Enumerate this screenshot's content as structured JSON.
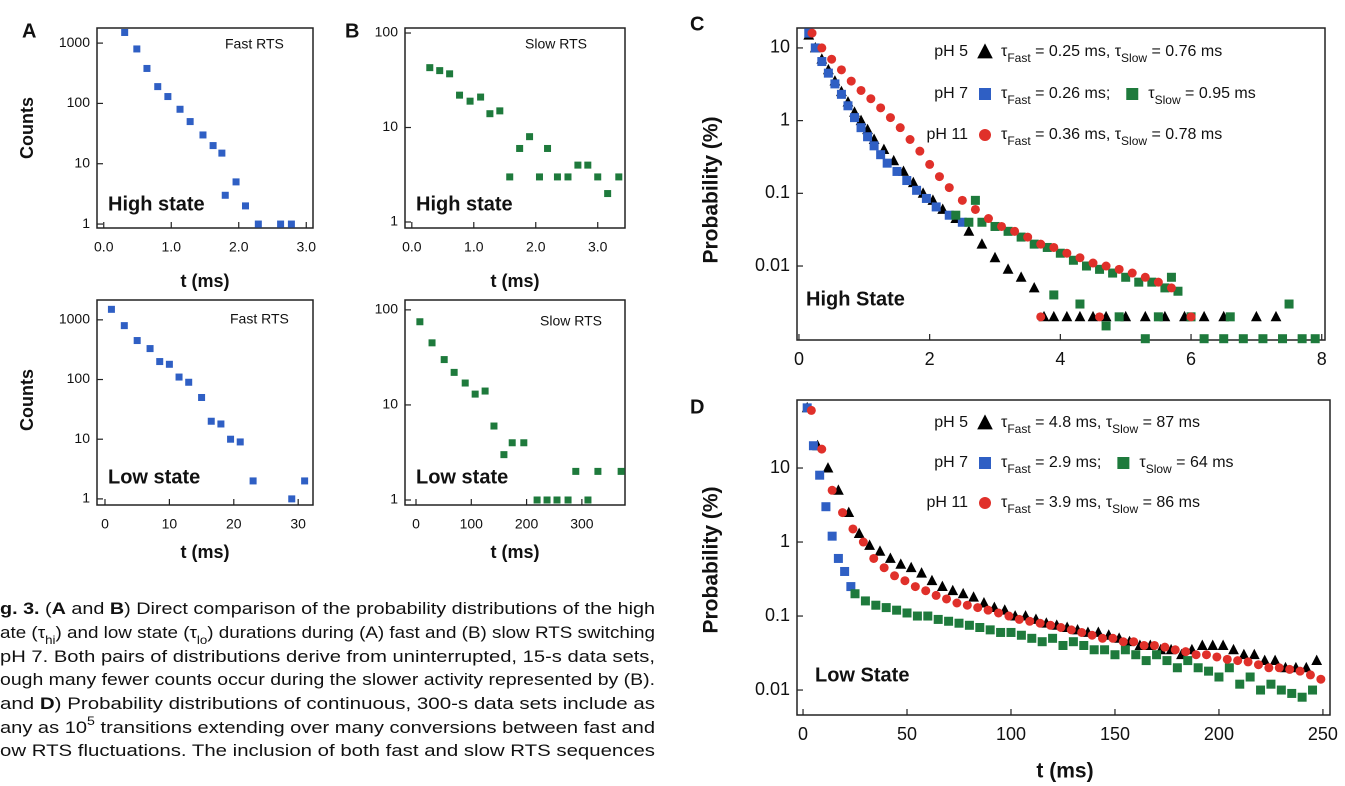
{
  "chart_data": [
    {
      "type": "scatter",
      "panel": "A",
      "ylabel": "Counts",
      "xlabel": "t (ms)",
      "annotations": [
        "Fast RTS",
        "High state"
      ],
      "marker": "square",
      "color": "#2f5fc4",
      "log_y": true,
      "xlim": [
        -0.1,
        3.1
      ],
      "ylim": [
        0.86,
        1780
      ],
      "xticks": [
        {
          "value": 0,
          "label": "0.0"
        },
        {
          "value": 1,
          "label": "1.0"
        },
        {
          "value": 2,
          "label": "2.0"
        },
        {
          "value": 3,
          "label": "3.0"
        }
      ],
      "yticks": [
        1,
        10,
        100,
        1000
      ],
      "x": [
        0.31,
        0.49,
        0.64,
        0.8,
        0.95,
        1.13,
        1.28,
        1.47,
        1.62,
        1.75,
        1.8,
        1.96,
        2.1,
        2.29,
        2.62,
        2.78
      ],
      "values": [
        1500,
        800,
        380,
        190,
        130,
        80,
        50,
        30,
        20,
        15,
        3,
        5,
        2,
        1,
        1,
        1
      ]
    },
    {
      "type": "scatter",
      "ylabel": "Counts",
      "xlabel": "t (ms)",
      "annotations": [
        "Fast RTS",
        "Low state"
      ],
      "marker": "square",
      "color": "#2f5fc4",
      "log_y": true,
      "xlim": [
        -1.24,
        32.3
      ],
      "ylim": [
        0.79,
        2150
      ],
      "xticks": [
        0,
        10,
        20,
        30
      ],
      "yticks": [
        1,
        10,
        100,
        1000
      ],
      "x": [
        1,
        3,
        5,
        7,
        8.5,
        10,
        11.5,
        13,
        15,
        16.5,
        18,
        19.5,
        21,
        23,
        29,
        31
      ],
      "values": [
        1500,
        800,
        450,
        330,
        200,
        180,
        110,
        90,
        50,
        20,
        18,
        10,
        9,
        2,
        1,
        2
      ]
    },
    {
      "type": "scatter",
      "panel": "B",
      "xlabel": "t (ms)",
      "annotations": [
        "Slow RTS",
        "High state"
      ],
      "marker": "square",
      "color": "#1e7a3c",
      "log_y": true,
      "xlim": [
        -0.11,
        3.44
      ],
      "ylim": [
        0.864,
        113
      ],
      "xticks": [
        {
          "value": 0,
          "label": "0.0"
        },
        {
          "value": 1,
          "label": "1.0"
        },
        {
          "value": 2,
          "label": "2.0"
        },
        {
          "value": 3,
          "label": "3.0"
        }
      ],
      "yticks": [
        1,
        10,
        100
      ],
      "x": [
        0.29,
        0.45,
        0.61,
        0.77,
        0.94,
        1.11,
        1.26,
        1.42,
        1.58,
        1.74,
        1.9,
        2.06,
        2.19,
        2.35,
        2.52,
        2.68,
        2.84,
        3.0,
        3.16,
        3.34
      ],
      "values": [
        43,
        40,
        37,
        22,
        19,
        21,
        14,
        15,
        3,
        6,
        8,
        3,
        6,
        3,
        3,
        4,
        4,
        3,
        2,
        3
      ]
    },
    {
      "type": "scatter",
      "xlabel": "t (ms)",
      "annotations": [
        "Slow RTS",
        "Low state"
      ],
      "marker": "square",
      "color": "#1e7a3c",
      "log_y": true,
      "xlim": [
        -19.9,
        378
      ],
      "ylim": [
        0.886,
        127
      ],
      "xticks": [
        0,
        100,
        200,
        300
      ],
      "yticks": [
        1,
        10,
        100
      ],
      "x": [
        7,
        29,
        51,
        69,
        89,
        107,
        125,
        141,
        159,
        174,
        195,
        219,
        237,
        255,
        275,
        289,
        311,
        329,
        371
      ],
      "values": [
        75,
        45,
        30,
        22,
        17,
        13,
        14,
        6,
        3,
        4,
        4,
        1,
        1,
        1,
        1,
        2,
        1,
        2,
        2
      ]
    },
    {
      "type": "scatter",
      "panel": "C",
      "ylabel": "Probability (%)",
      "annotations": [
        "High State"
      ],
      "log_y": true,
      "xlim": [
        -0.03,
        8.05
      ],
      "ylim": [
        0.00096,
        18.8
      ],
      "xticks": [
        0,
        2,
        4,
        6,
        8
      ],
      "yticks": [
        0.01,
        0.1,
        1,
        10
      ],
      "series": [
        {
          "name": "pH 5",
          "label": [
            "τ",
            "Fast",
            " = 0.25 ms, τ",
            "Slow",
            " = 0.76 ms"
          ],
          "marker": "triangle",
          "color": "#000000",
          "x": [
            0.15,
            0.25,
            0.35,
            0.45,
            0.55,
            0.65,
            0.75,
            0.85,
            0.95,
            1.05,
            1.15,
            1.3,
            1.45,
            1.6,
            1.75,
            1.9,
            2.05,
            2.2,
            2.4,
            2.6,
            2.8,
            3.0,
            3.2,
            3.4,
            3.6,
            3.75,
            3.9,
            4.1,
            4.3,
            4.5,
            4.7,
            5.0,
            5.3,
            5.6,
            5.9,
            6.2,
            6.5,
            7.0,
            7.3
          ],
          "values": [
            15,
            10,
            7,
            5,
            3.5,
            2.5,
            1.8,
            1.3,
            1,
            0.75,
            0.55,
            0.4,
            0.28,
            0.2,
            0.14,
            0.1,
            0.08,
            0.06,
            0.045,
            0.03,
            0.02,
            0.013,
            0.009,
            0.007,
            0.005,
            0.002,
            0.002,
            0.002,
            0.002,
            0.002,
            0.002,
            0.002,
            0.002,
            0.002,
            0.002,
            0.002,
            0.002,
            0.002,
            0.002
          ]
        },
        {
          "name": "pH 7",
          "label": [
            "τ",
            "Fast",
            " = 0.26 ms;"
          ],
          "marker": "square",
          "color": "#2f5fc4",
          "x": [
            0.15,
            0.25,
            0.35,
            0.45,
            0.55,
            0.65,
            0.75,
            0.85,
            0.95,
            1.05,
            1.15,
            1.25,
            1.35,
            1.5,
            1.65,
            1.8,
            1.95,
            2.1,
            2.3,
            2.5
          ],
          "values": [
            16,
            10,
            6.5,
            4.5,
            3.2,
            2.3,
            1.6,
            1.1,
            0.8,
            0.6,
            0.45,
            0.34,
            0.26,
            0.2,
            0.15,
            0.11,
            0.085,
            0.065,
            0.05,
            0.04
          ]
        },
        {
          "label": [
            "τ",
            "Slow",
            " = 0.95 ms"
          ],
          "marker": "square",
          "color": "#1e7a3c",
          "x": [
            2.4,
            2.6,
            2.8,
            3.0,
            3.2,
            3.4,
            3.6,
            3.8,
            4.0,
            4.2,
            4.4,
            4.6,
            4.8,
            5.0,
            5.2,
            5.4,
            5.6,
            5.8,
            3.9,
            4.3,
            4.9,
            5.5,
            6.0,
            6.2,
            6.5,
            6.8,
            7.1,
            7.4,
            7.7,
            7.9,
            7.5,
            6.6,
            5.3,
            4.7,
            2.7,
            5.7
          ],
          "values": [
            0.05,
            0.04,
            0.04,
            0.035,
            0.03,
            0.025,
            0.02,
            0.018,
            0.015,
            0.012,
            0.01,
            0.009,
            0.008,
            0.007,
            0.006,
            0.006,
            0.005,
            0.0045,
            0.004,
            0.003,
            0.002,
            0.002,
            0.002,
            0.001,
            0.001,
            0.001,
            0.001,
            0.001,
            0.001,
            0.001,
            0.003,
            0.002,
            0.001,
            0.0015,
            0.08,
            0.007
          ]
        },
        {
          "name": "pH 11",
          "label": [
            "τ",
            "Fast",
            " = 0.36 ms, τ",
            "Slow",
            " = 0.78 ms"
          ],
          "marker": "circle",
          "color": "#e0302a",
          "x": [
            0.2,
            0.35,
            0.5,
            0.65,
            0.8,
            0.95,
            1.1,
            1.25,
            1.4,
            1.55,
            1.7,
            1.85,
            2.0,
            2.15,
            2.3,
            2.5,
            2.7,
            2.9,
            3.1,
            3.3,
            3.5,
            3.7,
            3.9,
            4.1,
            4.3,
            4.5,
            4.7,
            4.9,
            5.1,
            5.3,
            5.5,
            5.7,
            4.6,
            3.7,
            6.0
          ],
          "values": [
            16,
            10,
            7,
            5,
            3.5,
            2.6,
            2,
            1.5,
            1.1,
            0.8,
            0.55,
            0.38,
            0.25,
            0.17,
            0.12,
            0.08,
            0.06,
            0.045,
            0.035,
            0.03,
            0.025,
            0.02,
            0.018,
            0.015,
            0.013,
            0.011,
            0.01,
            0.009,
            0.008,
            0.007,
            0.006,
            0.005,
            0.002,
            0.002,
            0.002
          ]
        }
      ]
    },
    {
      "type": "scatter",
      "panel": "D",
      "ylabel": "Probability (%)",
      "xlabel": "t (ms)",
      "annotations": [
        "Low State"
      ],
      "log_y": true,
      "xlim": [
        -2.9,
        253.4
      ],
      "ylim": [
        0.0046,
        83
      ],
      "xticks": [
        0,
        50,
        100,
        150,
        200,
        250
      ],
      "yticks": [
        0.01,
        0.1,
        1,
        10
      ],
      "series": [
        {
          "name": "pH 5",
          "label": [
            "τ",
            "Fast",
            " = 4.8 ms, τ",
            "Slow",
            " = 87 ms"
          ],
          "marker": "triangle",
          "color": "#000000",
          "x": [
            2,
            7,
            12,
            17,
            22,
            27,
            32,
            37,
            42,
            47,
            52,
            57,
            62,
            67,
            72,
            77,
            82,
            87,
            92,
            97,
            102,
            107,
            112,
            117,
            122,
            127,
            132,
            137,
            142,
            147,
            152,
            157,
            162,
            167,
            172,
            177,
            182,
            187,
            192,
            197,
            202,
            207,
            212,
            217,
            222,
            227,
            232,
            237,
            242,
            247
          ],
          "values": [
            65,
            20,
            10,
            5,
            2.5,
            1.3,
            0.9,
            0.75,
            0.6,
            0.5,
            0.45,
            0.38,
            0.3,
            0.25,
            0.22,
            0.2,
            0.18,
            0.15,
            0.13,
            0.12,
            0.1,
            0.1,
            0.09,
            0.08,
            0.075,
            0.07,
            0.065,
            0.06,
            0.06,
            0.055,
            0.05,
            0.045,
            0.04,
            0.04,
            0.035,
            0.035,
            0.03,
            0.035,
            0.04,
            0.04,
            0.04,
            0.035,
            0.03,
            0.03,
            0.025,
            0.025,
            0.02,
            0.02,
            0.02,
            0.025
          ]
        },
        {
          "name": "pH 7",
          "label": [
            "τ",
            "Fast",
            " = 2.9 ms;"
          ],
          "marker": "square",
          "color": "#2f5fc4",
          "x": [
            2,
            5,
            8,
            11,
            14,
            17,
            20,
            23
          ],
          "values": [
            65,
            20,
            8,
            3,
            1.2,
            0.6,
            0.4,
            0.25
          ]
        },
        {
          "label": [
            "τ",
            "Slow",
            " = 64 ms"
          ],
          "marker": "square",
          "color": "#1e7a3c",
          "x": [
            25,
            30,
            35,
            40,
            45,
            50,
            55,
            60,
            65,
            70,
            75,
            80,
            85,
            90,
            95,
            100,
            105,
            110,
            115,
            120,
            125,
            130,
            135,
            140,
            145,
            150,
            155,
            160,
            165,
            170,
            175,
            180,
            185,
            190,
            195,
            200,
            205,
            210,
            215,
            220,
            225,
            230,
            235,
            240,
            245
          ],
          "values": [
            0.2,
            0.16,
            0.14,
            0.13,
            0.12,
            0.11,
            0.1,
            0.1,
            0.09,
            0.085,
            0.08,
            0.075,
            0.07,
            0.065,
            0.06,
            0.06,
            0.055,
            0.05,
            0.045,
            0.05,
            0.04,
            0.045,
            0.04,
            0.035,
            0.035,
            0.03,
            0.035,
            0.03,
            0.025,
            0.03,
            0.025,
            0.02,
            0.025,
            0.02,
            0.018,
            0.015,
            0.02,
            0.012,
            0.015,
            0.01,
            0.012,
            0.01,
            0.009,
            0.008,
            0.01
          ]
        },
        {
          "name": "pH 11",
          "label": [
            "τ",
            "Fast",
            " = 3.9 ms, τ",
            "Slow",
            " = 86 ms"
          ],
          "marker": "circle",
          "color": "#e0302a",
          "x": [
            4,
            9,
            14,
            19,
            24,
            29,
            34,
            39,
            44,
            49,
            54,
            59,
            64,
            69,
            74,
            79,
            84,
            89,
            94,
            99,
            104,
            109,
            114,
            119,
            124,
            129,
            134,
            139,
            144,
            149,
            154,
            159,
            164,
            169,
            174,
            179,
            184,
            189,
            194,
            199,
            204,
            209,
            214,
            219,
            224,
            229,
            234,
            239,
            244,
            249
          ],
          "values": [
            60,
            18,
            5,
            2.5,
            1.5,
            1,
            0.6,
            0.45,
            0.35,
            0.3,
            0.25,
            0.22,
            0.19,
            0.17,
            0.15,
            0.14,
            0.13,
            0.12,
            0.11,
            0.1,
            0.09,
            0.085,
            0.08,
            0.075,
            0.07,
            0.065,
            0.06,
            0.055,
            0.05,
            0.05,
            0.045,
            0.045,
            0.04,
            0.04,
            0.038,
            0.035,
            0.033,
            0.03,
            0.03,
            0.028,
            0.026,
            0.025,
            0.024,
            0.022,
            0.02,
            0.02,
            0.019,
            0.018,
            0.016,
            0.014
          ]
        }
      ]
    }
  ],
  "caption": [
    [
      {
        "bold": "g. 3."
      },
      " (",
      {
        "bold": "A"
      },
      " and ",
      {
        "bold": "B"
      },
      ") Direct comparison of the probability distributions of the high"
    ],
    [
      "ate (τ",
      {
        "sub": "hi"
      },
      ") and low state (τ",
      {
        "sub": "lo"
      },
      ") durations during (A) fast and (B) slow RTS switching"
    ],
    [
      " pH 7. Both pairs of distributions derive from uninterrupted, 15-s data sets,"
    ],
    [
      "ough many fewer counts occur during the slower activity represented by (B)."
    ],
    [
      " and ",
      {
        "bold": "D"
      },
      ") Probability distributions of continuous, 300-s data sets include as"
    ],
    [
      "any as 10",
      {
        "sup": "5"
      },
      " transitions extending over many conversions between fast and"
    ],
    [
      "ow RTS fluctuations. The inclusion of both fast and slow RTS sequences"
    ]
  ]
}
